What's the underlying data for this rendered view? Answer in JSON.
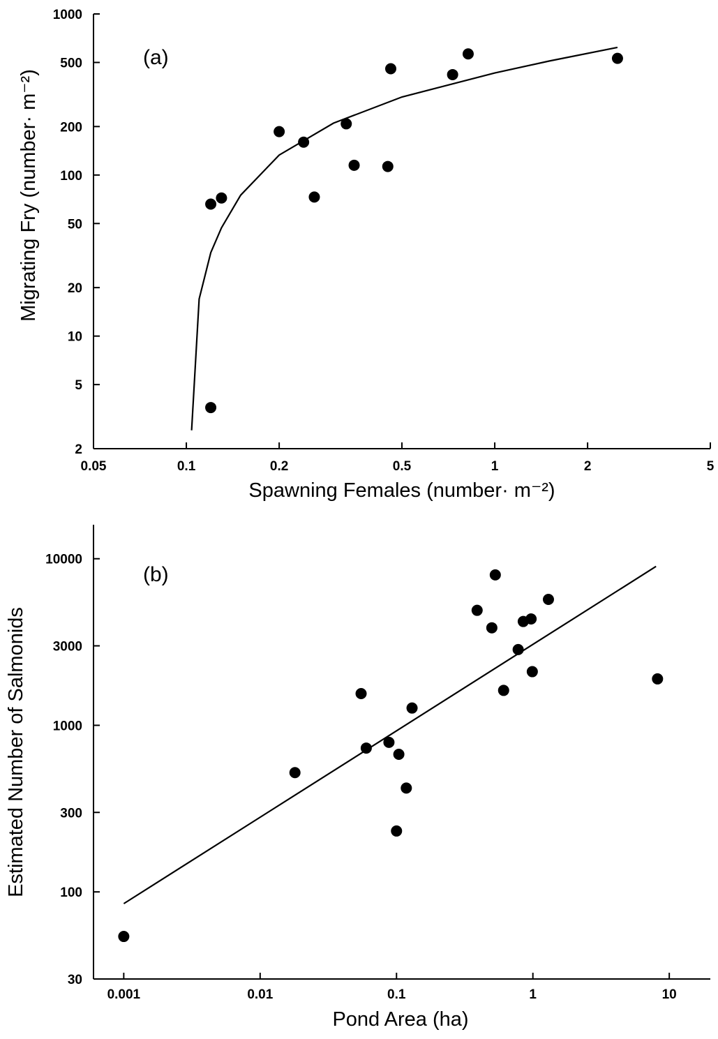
{
  "chart_data": [
    {
      "type": "scatter",
      "panel_label": "(a)",
      "xlabel": "Spawning Females (number· m⁻²)",
      "ylabel": "Migrating Fry (number· m⁻²)",
      "xscale": "log",
      "yscale": "log",
      "xlim": [
        0.05,
        5
      ],
      "ylim": [
        2,
        1000
      ],
      "xticks": [
        0.05,
        0.1,
        0.2,
        0.5,
        1,
        2,
        5
      ],
      "xtick_labels": [
        "0.05",
        "0.1",
        "0.2",
        "0.5",
        "1",
        "2",
        "5"
      ],
      "yticks": [
        2,
        5,
        10,
        20,
        50,
        100,
        200,
        500,
        1000
      ],
      "ytick_labels": [
        "2",
        "5",
        "10",
        "20",
        "50",
        "100",
        "200",
        "500",
        "1000"
      ],
      "grid": false,
      "points": [
        {
          "x": 0.12,
          "y": 3.6
        },
        {
          "x": 0.12,
          "y": 66
        },
        {
          "x": 0.13,
          "y": 72
        },
        {
          "x": 0.2,
          "y": 186
        },
        {
          "x": 0.24,
          "y": 160
        },
        {
          "x": 0.26,
          "y": 73
        },
        {
          "x": 0.33,
          "y": 208
        },
        {
          "x": 0.35,
          "y": 115
        },
        {
          "x": 0.45,
          "y": 113
        },
        {
          "x": 0.46,
          "y": 457
        },
        {
          "x": 0.73,
          "y": 420
        },
        {
          "x": 0.82,
          "y": 565
        },
        {
          "x": 2.5,
          "y": 530
        }
      ],
      "fit_line": {
        "x": [
          0.104,
          0.11,
          0.12,
          0.13,
          0.15,
          0.2,
          0.3,
          0.5,
          1,
          1.5,
          2.5
        ],
        "y": [
          2.6,
          17,
          33,
          47,
          75,
          133,
          210,
          305,
          430,
          510,
          620
        ]
      }
    },
    {
      "type": "scatter",
      "panel_label": "(b)",
      "xlabel": "Pond Area (ha)",
      "ylabel": "Estimated Number of Salmonids",
      "xscale": "log",
      "yscale": "log",
      "xlim": [
        0.0006,
        20
      ],
      "ylim": [
        30,
        16000
      ],
      "xticks": [
        0.001,
        0.01,
        0.1,
        1,
        10
      ],
      "xtick_labels": [
        "0.001",
        "0.01",
        "0.1",
        "1",
        "10"
      ],
      "yticks": [
        30,
        100,
        300,
        1000,
        3000,
        10000
      ],
      "ytick_labels": [
        "30",
        "100",
        "300",
        "1000",
        "3000",
        "10000"
      ],
      "grid": false,
      "points": [
        {
          "x": 0.001,
          "y": 54
        },
        {
          "x": 0.018,
          "y": 520
        },
        {
          "x": 0.055,
          "y": 1550
        },
        {
          "x": 0.06,
          "y": 730
        },
        {
          "x": 0.088,
          "y": 790
        },
        {
          "x": 0.1,
          "y": 232
        },
        {
          "x": 0.104,
          "y": 670
        },
        {
          "x": 0.118,
          "y": 420
        },
        {
          "x": 0.13,
          "y": 1270
        },
        {
          "x": 0.39,
          "y": 4900
        },
        {
          "x": 0.5,
          "y": 3850
        },
        {
          "x": 0.53,
          "y": 8000
        },
        {
          "x": 0.61,
          "y": 1620
        },
        {
          "x": 0.78,
          "y": 2850
        },
        {
          "x": 0.85,
          "y": 4200
        },
        {
          "x": 0.97,
          "y": 4350
        },
        {
          "x": 0.99,
          "y": 2100
        },
        {
          "x": 1.3,
          "y": 5700
        },
        {
          "x": 8.2,
          "y": 1900
        }
      ],
      "fit_line": {
        "x": [
          0.001,
          8.0
        ],
        "y": [
          85,
          9000
        ]
      }
    }
  ]
}
